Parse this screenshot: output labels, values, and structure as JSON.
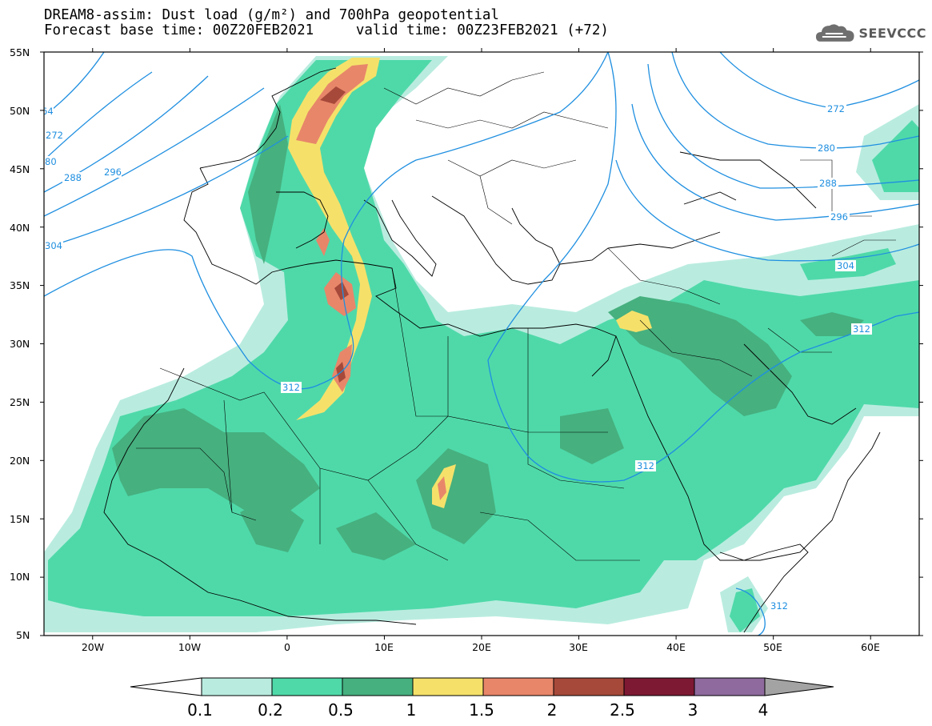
{
  "title": {
    "line1": "DREAM8-assim: Dust load (g/m²) and 700hPa geopotential",
    "line2": "Forecast base time: 00Z20FEB2021     valid time: 00Z23FEB2021 (+72)"
  },
  "logo": {
    "text": "SEEVCCC",
    "icon": "cloud-icon"
  },
  "map": {
    "lon_range": [
      -25,
      65
    ],
    "lat_range": [
      5,
      55
    ],
    "lat_labels": [
      "55N",
      "50N",
      "45N",
      "40N",
      "35N",
      "30N",
      "25N",
      "20N",
      "15N",
      "10N",
      "5N"
    ],
    "lon_labels": [
      "20W",
      "10W",
      "0",
      "10E",
      "20E",
      "30E",
      "40E",
      "50E",
      "60E"
    ],
    "isoline_color": "#1f8fe0",
    "isoline_labels": [
      "64",
      "272",
      "80",
      "288",
      "296",
      "304",
      "312",
      "272",
      "280",
      "288",
      "296",
      "304",
      "312",
      "312",
      "312"
    ]
  },
  "colorbar": {
    "colors": [
      "#ffffff",
      "#b9ecdf",
      "#4fd9a9",
      "#46b07f",
      "#f5e16a",
      "#e8866a",
      "#a6493a",
      "#7d1933",
      "#8e6a9e",
      "#a3a3a3"
    ],
    "labels": [
      "0.1",
      "0.2",
      "0.5",
      "1",
      "1.5",
      "2",
      "2.5",
      "3",
      "4"
    ]
  }
}
